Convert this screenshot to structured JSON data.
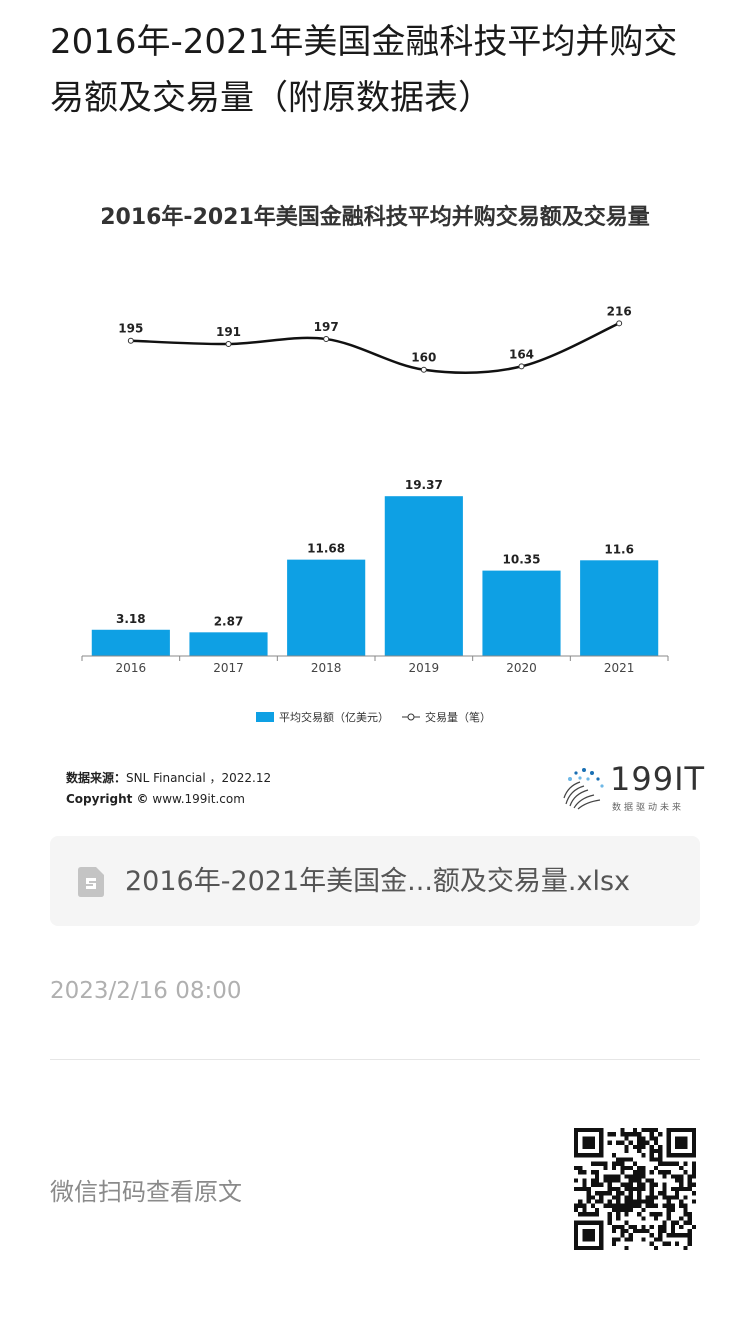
{
  "article": {
    "title": "2016年-2021年美国金融科技平均并购交易额及交易量（附原数据表）"
  },
  "chart_data": {
    "type": "bar",
    "title": "2016年-2021年美国金融科技平均并购交易额及交易量",
    "categories": [
      "2016",
      "2017",
      "2018",
      "2019",
      "2020",
      "2021"
    ],
    "series": [
      {
        "name": "平均交易额（亿美元）",
        "type": "bar",
        "values": [
          3.18,
          2.87,
          11.68,
          19.37,
          10.35,
          11.6
        ],
        "labels": [
          "3.18",
          "2.87",
          "11.68",
          "19.37",
          "10.35",
          "11.6"
        ],
        "color": "#0ea0e4"
      },
      {
        "name": "交易量（笔）",
        "type": "line",
        "values": [
          195,
          191,
          197,
          160,
          164,
          216
        ],
        "labels": [
          "195",
          "191",
          "197",
          "160",
          "164",
          "216"
        ],
        "color": "#111111"
      }
    ],
    "legend": [
      {
        "label": "平均交易额（亿美元）",
        "marker": "bar"
      },
      {
        "label": "交易量（笔）",
        "marker": "line"
      }
    ],
    "legend_position": "bottom",
    "grid": false
  },
  "source": {
    "label": "数据来源：",
    "value": "SNL Financial ，2022.12",
    "copyright_label": "Copyright ©",
    "copyright_value": "www.199it.com"
  },
  "logo": {
    "text": "199IT",
    "subtext": "数据驱动未来"
  },
  "file": {
    "name": "2016年-2021年美国金...额及交易量.xlsx",
    "icon": "spreadsheet-file-icon"
  },
  "timestamp": "2023/2/16 08:00",
  "footer": {
    "scan_text": "微信扫码查看原文",
    "qr_icon": "qr-code-icon"
  }
}
